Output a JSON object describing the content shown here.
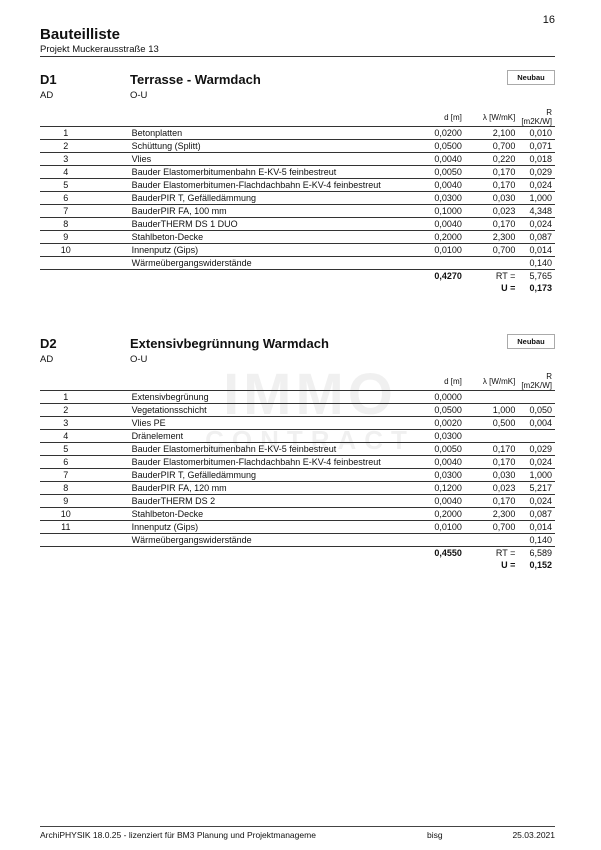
{
  "page_number": "16",
  "title": "Bauteilliste",
  "project": "Projekt Muckerausstraße 13",
  "columns": {
    "d": "d [m]",
    "lambda": "λ [W/mK]",
    "r": "R [m2K/W]"
  },
  "sections": [
    {
      "id": "D1",
      "name": "Terrasse - Warmdach",
      "badge": "Neubau",
      "code": "AD",
      "direction": "O-U",
      "rows": [
        {
          "no": "1",
          "name": "Betonplatten",
          "d": "0,0200",
          "lambda": "2,100",
          "r": "0,010"
        },
        {
          "no": "2",
          "name": "Schüttung (Splitt)",
          "d": "0,0500",
          "lambda": "0,700",
          "r": "0,071"
        },
        {
          "no": "3",
          "name": "Vlies",
          "d": "0,0040",
          "lambda": "0,220",
          "r": "0,018"
        },
        {
          "no": "4",
          "name": "Bauder Elastomerbitumenbahn E-KV-5 feinbestreut",
          "d": "0,0050",
          "lambda": "0,170",
          "r": "0,029"
        },
        {
          "no": "5",
          "name": "Bauder Elastomerbitumen-Flachdachbahn E-KV-4 feinbestreut",
          "d": "0,0040",
          "lambda": "0,170",
          "r": "0,024"
        },
        {
          "no": "6",
          "name": "BauderPIR T, Gefälledämmung",
          "d": "0,0300",
          "lambda": "0,030",
          "r": "1,000"
        },
        {
          "no": "7",
          "name": "BauderPIR FA, 100 mm",
          "d": "0,1000",
          "lambda": "0,023",
          "r": "4,348"
        },
        {
          "no": "8",
          "name": "BauderTHERM DS 1 DUO",
          "d": "0,0040",
          "lambda": "0,170",
          "r": "0,024"
        },
        {
          "no": "9",
          "name": "Stahlbeton-Decke",
          "d": "0,2000",
          "lambda": "2,300",
          "r": "0,087"
        },
        {
          "no": "10",
          "name": "Innenputz (Gips)",
          "d": "0,0100",
          "lambda": "0,700",
          "r": "0,014"
        },
        {
          "no": "",
          "name": "Wärmeübergangswiderstände",
          "d": "",
          "lambda": "",
          "r": "0,140"
        }
      ],
      "total_d": "0,4270",
      "rt_label": "RT =",
      "rt": "5,765",
      "u_label": "U =",
      "u": "0,173"
    },
    {
      "id": "D2",
      "name": "Extensivbegrünnung Warmdach",
      "badge": "Neubau",
      "code": "AD",
      "direction": "O-U",
      "rows": [
        {
          "no": "1",
          "name": "Extensivbegrünung",
          "d": "0,0000",
          "lambda": "",
          "r": ""
        },
        {
          "no": "2",
          "name": "Vegetationsschicht",
          "d": "0,0500",
          "lambda": "1,000",
          "r": "0,050"
        },
        {
          "no": "3",
          "name": "Vlies PE",
          "d": "0,0020",
          "lambda": "0,500",
          "r": "0,004"
        },
        {
          "no": "4",
          "name": "Dränelement",
          "d": "0,0300",
          "lambda": "",
          "r": ""
        },
        {
          "no": "5",
          "name": "Bauder Elastomerbitumenbahn E-KV-5 feinbestreut",
          "d": "0,0050",
          "lambda": "0,170",
          "r": "0,029"
        },
        {
          "no": "6",
          "name": "Bauder Elastomerbitumen-Flachdachbahn E-KV-4 feinbestreut",
          "d": "0,0040",
          "lambda": "0,170",
          "r": "0,024"
        },
        {
          "no": "7",
          "name": "BauderPIR T, Gefälledämmung",
          "d": "0,0300",
          "lambda": "0,030",
          "r": "1,000"
        },
        {
          "no": "8",
          "name": "BauderPIR FA, 120 mm",
          "d": "0,1200",
          "lambda": "0,023",
          "r": "5,217"
        },
        {
          "no": "9",
          "name": "BauderTHERM DS 2",
          "d": "0,0040",
          "lambda": "0,170",
          "r": "0,024"
        },
        {
          "no": "10",
          "name": "Stahlbeton-Decke",
          "d": "0,2000",
          "lambda": "2,300",
          "r": "0,087"
        },
        {
          "no": "11",
          "name": "Innenputz (Gips)",
          "d": "0,0100",
          "lambda": "0,700",
          "r": "0,014"
        },
        {
          "no": "",
          "name": "Wärmeübergangswiderstände",
          "d": "",
          "lambda": "",
          "r": "0,140"
        }
      ],
      "total_d": "0,4550",
      "rt_label": "RT =",
      "rt": "6,589",
      "u_label": "U =",
      "u": "0,152"
    }
  ],
  "watermark": {
    "line1": "IMMO",
    "line2": "CONTRACT"
  },
  "footer": {
    "software": "ArchiPHYSIK 18.0.25 - lizenziert für BM3 Planung und Projektmanageme",
    "user": "bisg",
    "date": "25.03.2021"
  }
}
